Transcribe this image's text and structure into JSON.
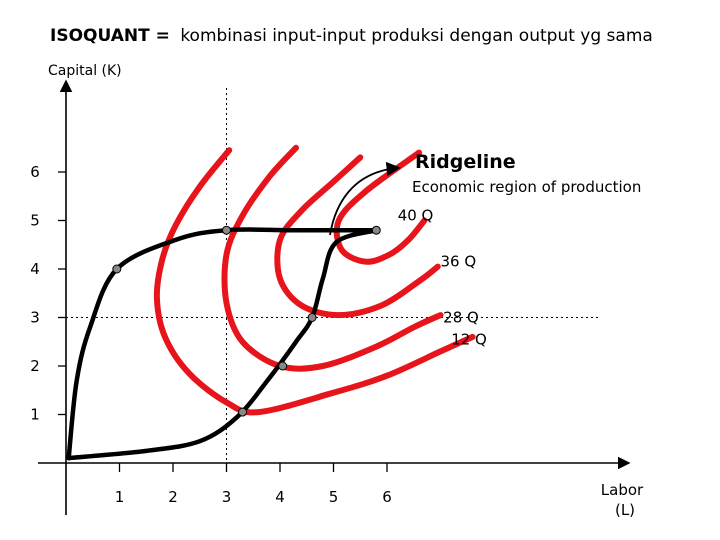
{
  "header": {
    "title_bold": "ISOQUANT =",
    "title_rest": "kombinasi input-input produksi dengan output yg sama"
  },
  "colors": {
    "isoquant": "#e8141c",
    "ridgeline": "#000000",
    "axis": "#000000",
    "guide": "#000000"
  },
  "chart_data": {
    "type": "line",
    "title": "ISOQUANT = kombinasi input-input produksi dengan output yg sama",
    "xlabel_line1": "Labor",
    "xlabel_line2": "(L)",
    "ylabel": "Capital (K)",
    "xlim": [
      0,
      10
    ],
    "ylim": [
      0,
      6.9
    ],
    "x_ticks": [
      1,
      2,
      3,
      4,
      5,
      6
    ],
    "y_ticks": [
      1,
      2,
      3,
      4,
      5,
      6
    ],
    "grid": false,
    "guide_lines": [
      {
        "axis": "vertical",
        "value": 3
      },
      {
        "axis": "horizontal",
        "value": 3
      }
    ],
    "series": [
      {
        "label": "12 Q",
        "label_pos": [
          7.2,
          2.55
        ],
        "points": [
          [
            3.05,
            6.45
          ],
          [
            2.5,
            5.7
          ],
          [
            2.05,
            4.9
          ],
          [
            1.8,
            4.2
          ],
          [
            1.7,
            3.4
          ],
          [
            1.85,
            2.6
          ],
          [
            2.3,
            1.85
          ],
          [
            3.0,
            1.25
          ],
          [
            3.6,
            1.05
          ],
          [
            5.0,
            1.45
          ],
          [
            6.0,
            1.8
          ],
          [
            7.0,
            2.3
          ],
          [
            7.6,
            2.6
          ]
        ]
      },
      {
        "label": "28 Q",
        "label_pos": [
          7.05,
          3.0
        ],
        "points": [
          [
            4.3,
            6.5
          ],
          [
            3.8,
            5.9
          ],
          [
            3.3,
            5.1
          ],
          [
            3.0,
            4.3
          ],
          [
            3.0,
            3.3
          ],
          [
            3.3,
            2.5
          ],
          [
            4.0,
            2.0
          ],
          [
            4.8,
            2.0
          ],
          [
            5.8,
            2.4
          ],
          [
            6.5,
            2.8
          ],
          [
            7.0,
            3.05
          ]
        ]
      },
      {
        "label": "36 Q",
        "label_pos": [
          7.0,
          4.15
        ],
        "points": [
          [
            5.5,
            6.3
          ],
          [
            5.0,
            5.8
          ],
          [
            4.4,
            5.2
          ],
          [
            4.0,
            4.6
          ],
          [
            4.0,
            3.8
          ],
          [
            4.4,
            3.25
          ],
          [
            5.1,
            3.05
          ],
          [
            5.9,
            3.25
          ],
          [
            6.6,
            3.75
          ],
          [
            6.95,
            4.05
          ]
        ]
      },
      {
        "label": "40 Q",
        "label_pos": [
          6.2,
          5.1
        ],
        "points": [
          [
            6.6,
            6.4
          ],
          [
            5.6,
            5.6
          ],
          [
            5.1,
            5.0
          ],
          [
            5.15,
            4.4
          ],
          [
            5.6,
            4.15
          ],
          [
            6.05,
            4.3
          ],
          [
            6.4,
            4.6
          ],
          [
            6.7,
            5.0
          ]
        ]
      }
    ],
    "ridgelines": [
      {
        "name": "upper",
        "points": [
          [
            0.05,
            0.1
          ],
          [
            0.2,
            1.7
          ],
          [
            0.45,
            2.8
          ],
          [
            0.95,
            4.0
          ],
          [
            2.05,
            4.6
          ],
          [
            3.0,
            4.8
          ],
          [
            4.3,
            4.8
          ],
          [
            5.8,
            4.8
          ]
        ]
      },
      {
        "name": "lower",
        "points": [
          [
            0.05,
            0.1
          ],
          [
            1.5,
            0.25
          ],
          [
            2.5,
            0.45
          ],
          [
            3.2,
            0.95
          ],
          [
            3.8,
            1.75
          ],
          [
            4.3,
            2.5
          ],
          [
            4.6,
            3.0
          ],
          [
            4.8,
            3.8
          ],
          [
            5.05,
            4.55
          ],
          [
            5.8,
            4.8
          ]
        ]
      }
    ],
    "markers": [
      [
        0.95,
        4.0
      ],
      [
        3.0,
        4.8
      ],
      [
        5.8,
        4.8
      ],
      [
        4.6,
        3.0
      ],
      [
        4.05,
        2.0
      ],
      [
        3.3,
        1.05
      ]
    ],
    "annotations": {
      "ridgeline_label": "Ridgeline",
      "economic_region": "Economic region of production"
    }
  }
}
